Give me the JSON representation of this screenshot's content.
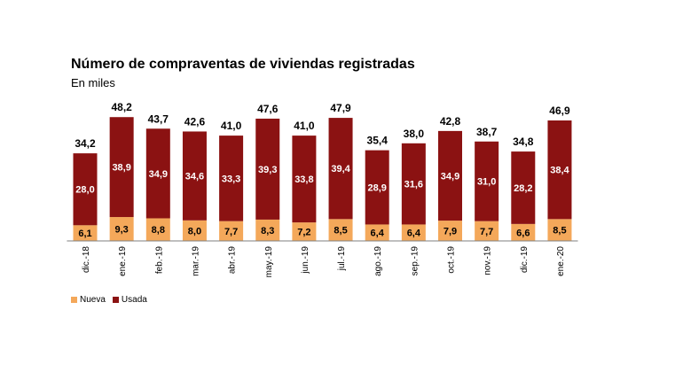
{
  "chart_data": {
    "type": "bar",
    "stacked": true,
    "title": "Número de compraventas de viviendas registradas",
    "subtitle": "En miles",
    "categories": [
      "dic.-18",
      "ene.-19",
      "feb.-19",
      "mar.-19",
      "abr.-19",
      "may.-19",
      "jun.-19",
      "jul.-19",
      "ago.-19",
      "sep.-19",
      "oct.-19",
      "nov.-19",
      "dic.-19",
      "ene.-20"
    ],
    "series": [
      {
        "name": "Nueva",
        "color": "#f4a85a",
        "values": [
          6.1,
          9.3,
          8.8,
          8.0,
          7.7,
          8.3,
          7.2,
          8.5,
          6.4,
          6.4,
          7.9,
          7.7,
          6.6,
          8.5
        ],
        "labels": [
          "6,1",
          "9,3",
          "8,8",
          "8,0",
          "7,7",
          "8,3",
          "7,2",
          "8,5",
          "6,4",
          "6,4",
          "7,9",
          "7,7",
          "6,6",
          "8,5"
        ]
      },
      {
        "name": "Usada",
        "color": "#8b1212",
        "values": [
          28.0,
          38.9,
          34.9,
          34.6,
          33.3,
          39.3,
          33.8,
          39.4,
          28.9,
          31.6,
          34.9,
          31.0,
          28.2,
          38.4
        ],
        "labels": [
          "28,0",
          "38,9",
          "34,9",
          "34,6",
          "33,3",
          "39,3",
          "33,8",
          "39,4",
          "28,9",
          "31,6",
          "34,9",
          "31,0",
          "28,2",
          "38,4"
        ]
      }
    ],
    "totals": [
      34.2,
      48.2,
      43.7,
      42.6,
      41.0,
      47.6,
      41.0,
      47.9,
      35.4,
      38.0,
      42.8,
      38.7,
      34.8,
      46.9
    ],
    "total_labels": [
      "34,2",
      "48,2",
      "43,7",
      "42,6",
      "41,0",
      "47,6",
      "41,0",
      "47,9",
      "35,4",
      "38,0",
      "42,8",
      "38,7",
      "34,8",
      "46,9"
    ],
    "legend": "bottom-left",
    "grid": false
  }
}
